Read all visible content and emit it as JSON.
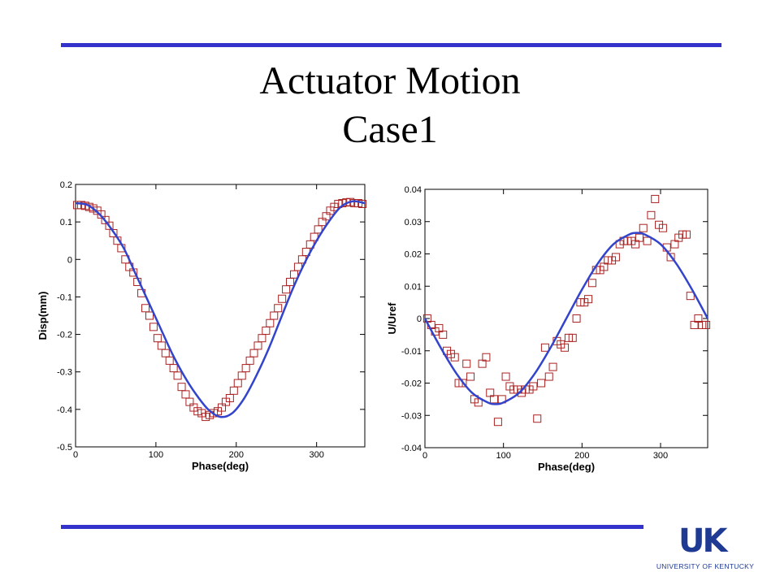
{
  "slide": {
    "title_line1": "Actuator Motion",
    "title_line2": "Case1",
    "accent_color": "#3333cc"
  },
  "logo": {
    "mark": "UK",
    "text": "UNIVERSITY OF KENTUCKY",
    "color": "#1f3a93"
  },
  "chart_data": [
    {
      "type": "scatter",
      "title": "",
      "xlabel": "Phase(deg)",
      "ylabel": "Disp(mm)",
      "xlim": [
        0,
        360
      ],
      "ylim": [
        -0.5,
        0.2
      ],
      "xticks": [
        0,
        100,
        200,
        300
      ],
      "yticks": [
        -0.5,
        -0.4,
        -0.3,
        -0.2,
        -0.1,
        0,
        0.1,
        0.2
      ],
      "ytick_labels": [
        "-0.5",
        "-0.4",
        "-0.3",
        "-0.2",
        "-0.1",
        "0",
        "0.1",
        "0.2"
      ],
      "grid": false,
      "line_color": "#3344cc",
      "marker_color": "#aa2222",
      "fit_line": {
        "x": [
          0,
          15,
          30,
          45,
          60,
          75,
          90,
          105,
          120,
          135,
          150,
          165,
          180,
          195,
          210,
          225,
          240,
          255,
          270,
          285,
          300,
          315,
          330,
          345,
          360
        ],
        "y": [
          0.15,
          0.145,
          0.12,
          0.08,
          0.03,
          -0.04,
          -0.11,
          -0.18,
          -0.25,
          -0.31,
          -0.36,
          -0.4,
          -0.42,
          -0.41,
          -0.37,
          -0.31,
          -0.24,
          -0.16,
          -0.08,
          -0.01,
          0.05,
          0.1,
          0.14,
          0.155,
          0.15
        ]
      },
      "measured": {
        "x": [
          2,
          7,
          12,
          17,
          22,
          27,
          32,
          37,
          42,
          47,
          52,
          57,
          62,
          67,
          72,
          77,
          82,
          87,
          92,
          97,
          102,
          107,
          112,
          117,
          122,
          127,
          132,
          137,
          142,
          147,
          152,
          157,
          162,
          167,
          172,
          177,
          182,
          187,
          192,
          197,
          202,
          207,
          212,
          217,
          222,
          227,
          232,
          237,
          242,
          247,
          252,
          257,
          262,
          267,
          272,
          277,
          282,
          287,
          292,
          297,
          302,
          307,
          312,
          317,
          322,
          327,
          332,
          337,
          342,
          347,
          352,
          357
        ],
        "y": [
          0.145,
          0.145,
          0.143,
          0.14,
          0.136,
          0.13,
          0.12,
          0.105,
          0.09,
          0.07,
          0.05,
          0.03,
          0.0,
          -0.02,
          -0.035,
          -0.06,
          -0.09,
          -0.13,
          -0.15,
          -0.18,
          -0.21,
          -0.23,
          -0.25,
          -0.27,
          -0.29,
          -0.31,
          -0.34,
          -0.36,
          -0.38,
          -0.395,
          -0.405,
          -0.41,
          -0.42,
          -0.415,
          -0.41,
          -0.405,
          -0.395,
          -0.38,
          -0.37,
          -0.35,
          -0.33,
          -0.31,
          -0.29,
          -0.27,
          -0.25,
          -0.23,
          -0.21,
          -0.19,
          -0.17,
          -0.15,
          -0.13,
          -0.105,
          -0.08,
          -0.06,
          -0.04,
          -0.02,
          0.0,
          0.02,
          0.04,
          0.06,
          0.08,
          0.1,
          0.115,
          0.13,
          0.14,
          0.148,
          0.15,
          0.152,
          0.153,
          0.15,
          0.15,
          0.148
        ]
      }
    },
    {
      "type": "scatter",
      "title": "",
      "xlabel": "Phase(deg)",
      "ylabel": "U/Uref",
      "xlim": [
        0,
        360
      ],
      "ylim": [
        -0.04,
        0.04
      ],
      "xticks": [
        0,
        100,
        200,
        300
      ],
      "yticks": [
        -0.04,
        -0.03,
        -0.02,
        -0.01,
        0,
        0.01,
        0.02,
        0.03,
        0.04
      ],
      "ytick_labels": [
        "-0.04",
        "-0.03",
        "-0.02",
        "-0.01",
        "0",
        "0.01",
        "0.02",
        "0.03",
        "0.04"
      ],
      "grid": false,
      "line_color": "#3344cc",
      "marker_color": "#aa2222",
      "fit_line": {
        "x": [
          0,
          20,
          40,
          60,
          80,
          90,
          100,
          120,
          140,
          160,
          180,
          200,
          220,
          240,
          260,
          270,
          280,
          300,
          320,
          340,
          360
        ],
        "y": [
          0.0,
          -0.009,
          -0.017,
          -0.023,
          -0.026,
          -0.0265,
          -0.026,
          -0.023,
          -0.017,
          -0.009,
          0.0,
          0.009,
          0.017,
          0.023,
          0.026,
          0.0265,
          0.026,
          0.023,
          0.017,
          0.009,
          0.0
        ]
      },
      "measured": {
        "x": [
          3,
          8,
          13,
          18,
          23,
          28,
          33,
          38,
          43,
          48,
          53,
          58,
          63,
          68,
          73,
          78,
          83,
          88,
          93,
          98,
          103,
          108,
          113,
          118,
          123,
          128,
          133,
          138,
          143,
          148,
          153,
          158,
          163,
          168,
          173,
          178,
          183,
          188,
          193,
          198,
          203,
          208,
          213,
          218,
          223,
          228,
          233,
          238,
          243,
          248,
          253,
          258,
          263,
          268,
          273,
          278,
          283,
          288,
          293,
          298,
          303,
          308,
          313,
          318,
          323,
          328,
          333,
          338,
          343,
          348,
          353,
          358
        ],
        "y": [
          0.0,
          -0.002,
          -0.004,
          -0.003,
          -0.005,
          -0.01,
          -0.011,
          -0.012,
          -0.02,
          -0.02,
          -0.014,
          -0.018,
          -0.025,
          -0.026,
          -0.014,
          -0.012,
          -0.023,
          -0.025,
          -0.032,
          -0.025,
          -0.018,
          -0.021,
          -0.022,
          -0.022,
          -0.023,
          -0.022,
          -0.022,
          -0.021,
          -0.031,
          -0.02,
          -0.009,
          -0.018,
          -0.015,
          -0.007,
          -0.008,
          -0.009,
          -0.006,
          -0.006,
          0.0,
          0.005,
          0.005,
          0.006,
          0.011,
          0.015,
          0.015,
          0.016,
          0.018,
          0.018,
          0.019,
          0.023,
          0.024,
          0.024,
          0.024,
          0.023,
          0.025,
          0.028,
          0.024,
          0.032,
          0.037,
          0.029,
          0.028,
          0.022,
          0.019,
          0.023,
          0.025,
          0.026,
          0.026,
          0.007,
          -0.002,
          0.0,
          -0.002,
          -0.002
        ]
      }
    }
  ]
}
